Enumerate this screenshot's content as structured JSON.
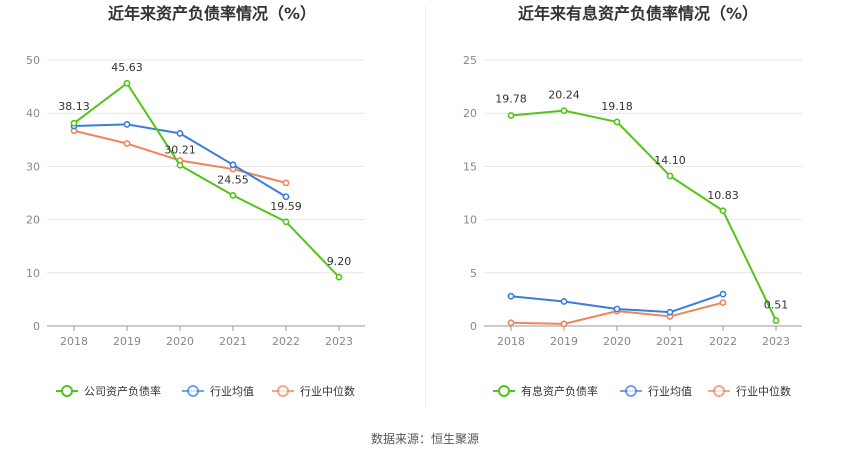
{
  "source_text": "数据来源：恒生聚源",
  "chart_data": [
    {
      "type": "line",
      "title": "近年来资产负债率情况（%）",
      "categories": [
        "2018",
        "2019",
        "2020",
        "2021",
        "2022",
        "2023"
      ],
      "ylim": [
        0,
        50
      ],
      "yticks": [
        0,
        10,
        20,
        30,
        40,
        50
      ],
      "grid": true,
      "legend_position": "bottom",
      "series": [
        {
          "name": "公司资产负债率",
          "color": "#52c41a",
          "values": [
            38.13,
            45.63,
            30.21,
            24.55,
            19.59,
            9.2
          ],
          "labels": [
            "38.13",
            "45.63",
            "30.21",
            "24.55",
            "19.59",
            "9.20"
          ]
        },
        {
          "name": "行业均值",
          "color": "#3b7ddd",
          "values": [
            37.6,
            37.9,
            36.2,
            30.3,
            24.3,
            null
          ]
        },
        {
          "name": "行业中位数",
          "color": "#f0845a",
          "values": [
            36.7,
            34.3,
            31.1,
            29.5,
            26.9,
            null
          ]
        }
      ]
    },
    {
      "type": "line",
      "title": "近年来有息资产负债率情况（%）",
      "categories": [
        "2018",
        "2019",
        "2020",
        "2021",
        "2022",
        "2023"
      ],
      "ylim": [
        0,
        25
      ],
      "yticks": [
        0,
        5,
        10,
        15,
        20,
        25
      ],
      "grid": true,
      "legend_position": "bottom",
      "series": [
        {
          "name": "有息资产负债率",
          "color": "#52c41a",
          "values": [
            19.78,
            20.24,
            19.18,
            14.1,
            10.83,
            0.51
          ],
          "labels": [
            "19.78",
            "20.24",
            "19.18",
            "14.10",
            "10.83",
            "0.51"
          ]
        },
        {
          "name": "行业均值",
          "color": "#3b7ddd",
          "values": [
            2.8,
            2.3,
            1.6,
            1.3,
            3.0,
            null
          ]
        },
        {
          "name": "行业中位数",
          "color": "#f0845a",
          "values": [
            0.3,
            0.2,
            1.4,
            0.9,
            2.2,
            null
          ]
        }
      ]
    }
  ]
}
